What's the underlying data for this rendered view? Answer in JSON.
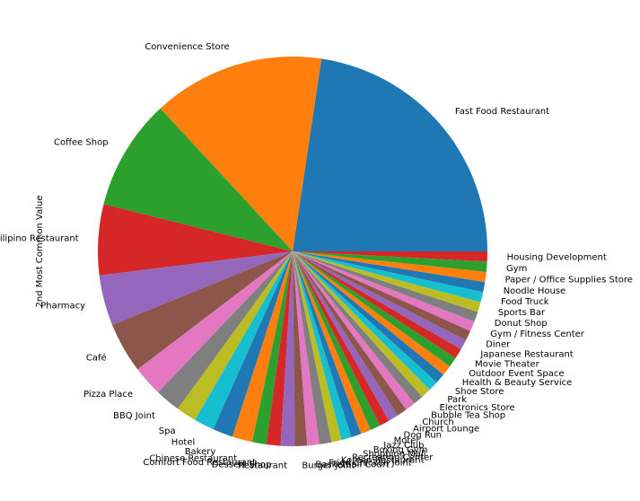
{
  "chart_data": {
    "type": "pie",
    "ylabel": "2nd Most Common Value",
    "start_angle_deg": 0,
    "direction": "counterclockwise",
    "colors": [
      "#1f77b4",
      "#ff7f0e",
      "#2ca02c",
      "#d62728",
      "#9467bd",
      "#8c564b",
      "#e377c2",
      "#7f7f7f",
      "#bcbd22",
      "#17becf"
    ],
    "categories": [
      "Fast Food Restaurant",
      "Convenience Store",
      "Coffee Shop",
      "Filipino Restaurant",
      "Pharmacy",
      "Café",
      "Pizza Place",
      "BBQ Joint",
      "Spa",
      "Hotel",
      "Bakery",
      "Chinese Restaurant",
      "Comfort Food Restaurant",
      "Dessert Shop",
      "Restaurant",
      "Burger Joint",
      "Basketball Court",
      "Fried Chicken Joint",
      "Korean Restaurant",
      "Recreation Center",
      "Shopping Mall",
      "Boxing Gym",
      "Jazz Club",
      "Motel",
      "Dog Run",
      "Airport Lounge",
      "Church",
      "Bubble Tea Shop",
      "Electronics Store",
      "Park",
      "Shoe Store",
      "Health & Beauty Service",
      "Outdoor Event Space",
      "Movie Theater",
      "Japanese Restaurant",
      "Diner",
      "Gym / Fitness Center",
      "Donut Shop",
      "Sports Bar",
      "Food Truck",
      "Noodle House",
      "Paper / Office Supplies Store",
      "Gym",
      "Housing Development"
    ],
    "values": [
      27,
      17,
      11,
      7,
      5,
      5,
      3,
      2.5,
      2,
      2,
      2,
      2,
      1.4,
      1.4,
      1.4,
      1.2,
      1.2,
      1.2,
      1,
      1,
      1,
      1,
      1,
      1,
      1,
      1,
      1,
      1,
      1,
      1,
      1,
      1,
      1,
      1,
      1,
      1,
      1,
      1,
      1,
      1,
      1,
      1,
      1,
      1
    ]
  }
}
